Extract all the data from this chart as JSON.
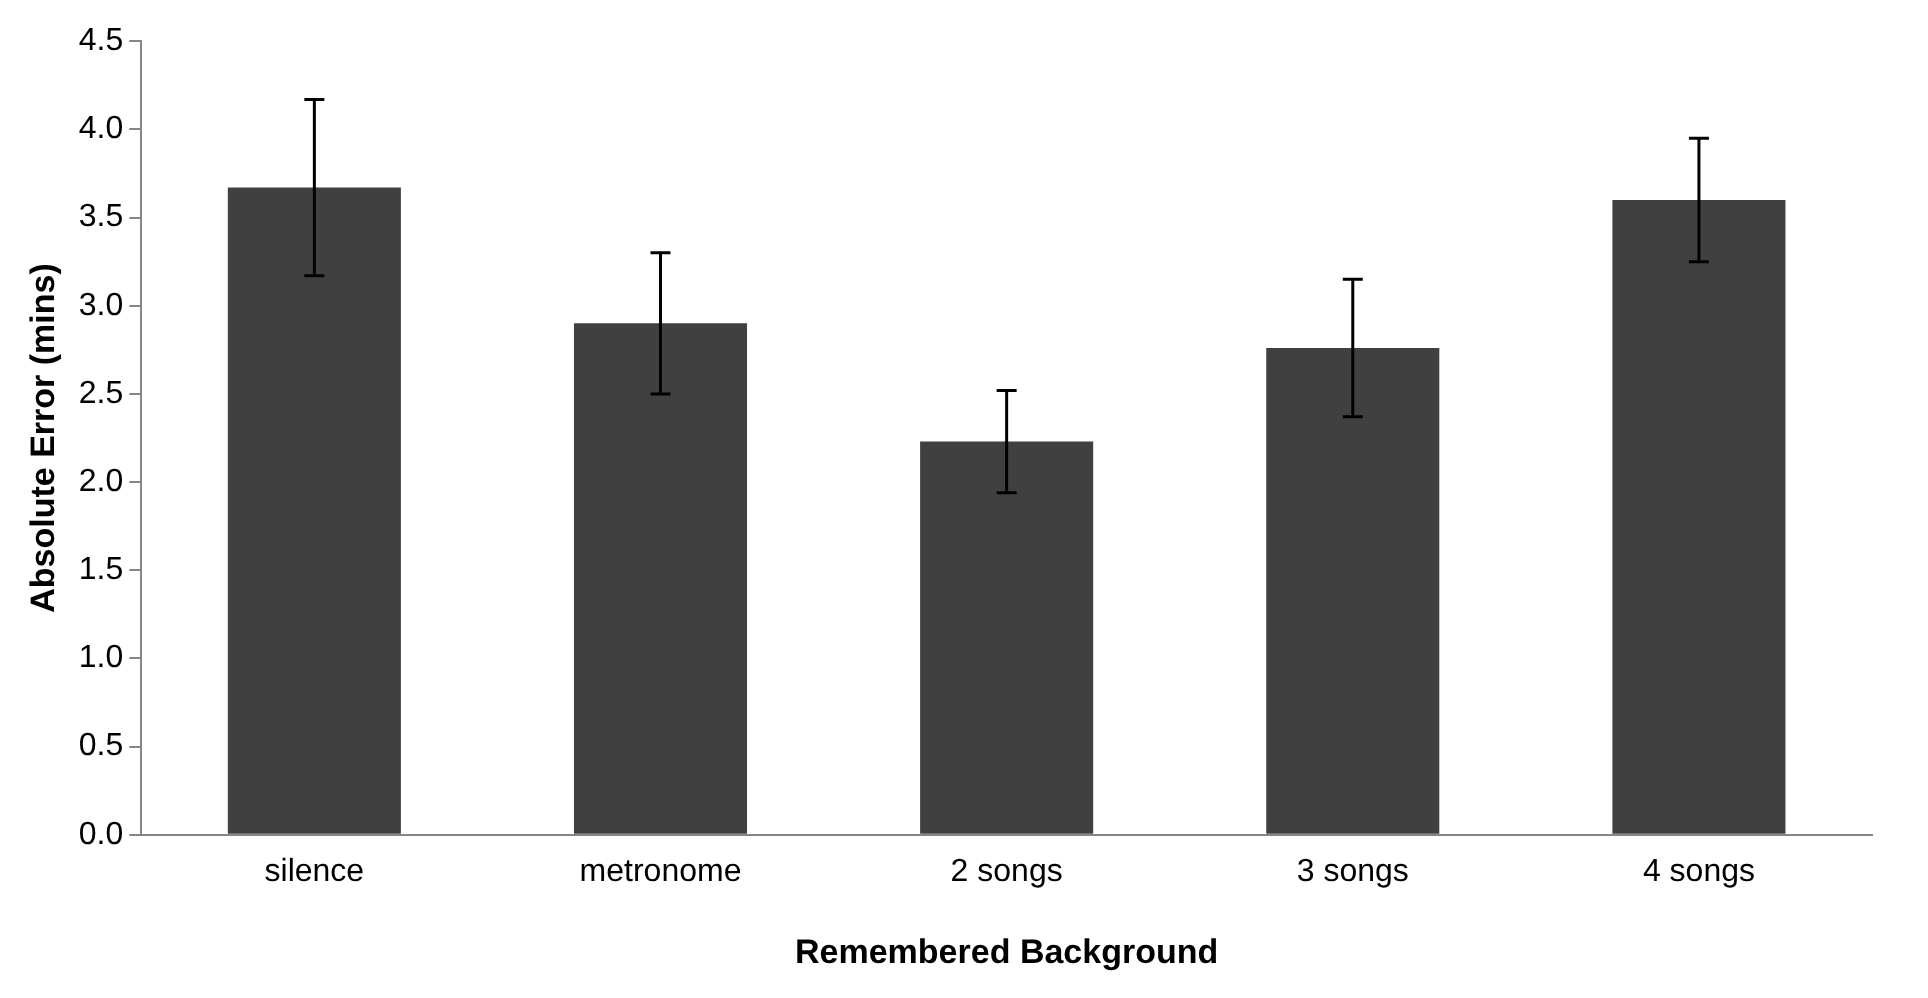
{
  "chart_data": {
    "type": "bar",
    "xlabel": "Remembered Background",
    "ylabel": "Absolute Error (mins)",
    "categories": [
      "silence",
      "metronome",
      "2 songs",
      "3 songs",
      "4 songs"
    ],
    "values": [
      3.67,
      2.9,
      2.23,
      2.76,
      3.6
    ],
    "errors": [
      0.5,
      0.4,
      0.29,
      0.39,
      0.35
    ],
    "color": "#404040",
    "ylim": [
      0,
      4.5
    ],
    "yticks": [
      {
        "value": 0,
        "label": "0.0"
      },
      {
        "value": 0.5,
        "label": "0.5"
      },
      {
        "value": 1,
        "label": "1.0"
      },
      {
        "value": 1.5,
        "label": "1.5"
      },
      {
        "value": 2,
        "label": "2.0"
      },
      {
        "value": 2.5,
        "label": "2.5"
      },
      {
        "value": 3,
        "label": "3.0"
      },
      {
        "value": 3.5,
        "label": "3.5"
      },
      {
        "value": 4,
        "label": "4.0"
      },
      {
        "value": 4.5,
        "label": "4.5"
      }
    ],
    "grid": false,
    "legend": false
  }
}
